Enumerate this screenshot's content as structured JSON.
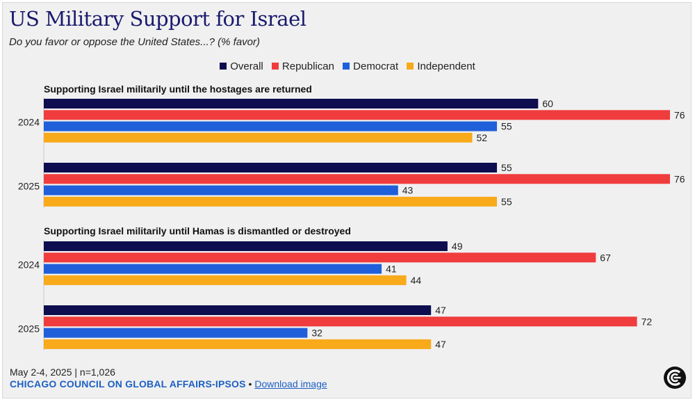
{
  "title": "US Military Support for Israel",
  "subtitle": "Do you favor or oppose the United States...? (% favor)",
  "legend": [
    {
      "name": "Overall",
      "color": "#0d0d4f"
    },
    {
      "name": "Republican",
      "color": "#f03c3c"
    },
    {
      "name": "Democrat",
      "color": "#1f5fd9"
    },
    {
      "name": "Independent",
      "color": "#f8aa1b"
    }
  ],
  "chart_data": {
    "type": "bar",
    "orientation": "horizontal",
    "xlim": [
      0,
      76
    ],
    "series_names": [
      "Overall",
      "Republican",
      "Democrat",
      "Independent"
    ],
    "groups": [
      {
        "title": "Supporting Israel militarily until the hostages are returned",
        "years": [
          {
            "label": "2024",
            "values": [
              60,
              76,
              55,
              52
            ]
          },
          {
            "label": "2025",
            "values": [
              55,
              76,
              43,
              55
            ]
          }
        ]
      },
      {
        "title": "Supporting Israel militarily until Hamas is dismantled or destroyed",
        "years": [
          {
            "label": "2024",
            "values": [
              49,
              67,
              41,
              44
            ]
          },
          {
            "label": "2025",
            "values": [
              47,
              72,
              32,
              47
            ]
          }
        ]
      }
    ]
  },
  "footer": {
    "date_line": "May 2-4, 2025 | n=1,026",
    "source": "CHICAGO COUNCIL ON GLOBAL AFFAIRS-IPSOS",
    "separator": " • ",
    "download": "Download image"
  },
  "logo": {
    "icon": "chicago-council-logo-icon"
  }
}
